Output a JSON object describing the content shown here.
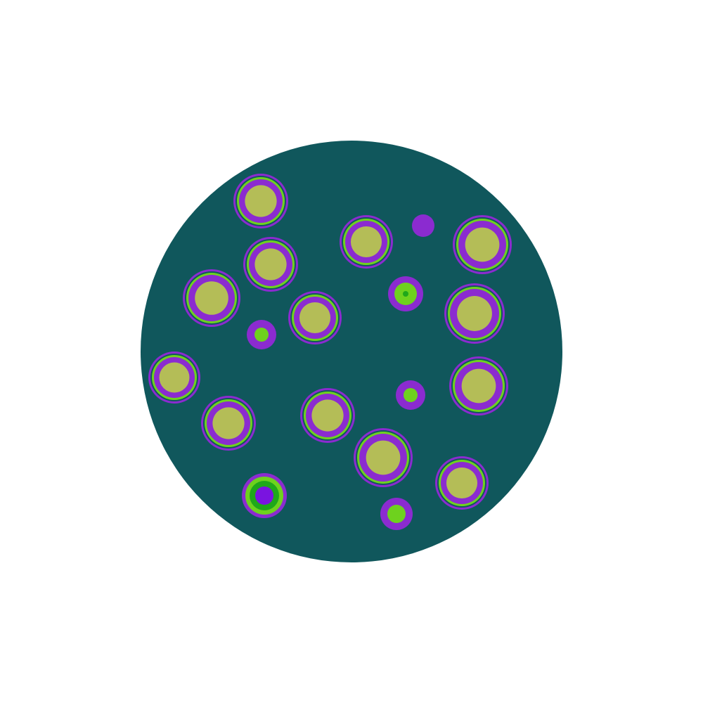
{
  "image": {
    "subject": "petri-dish",
    "colors": {
      "background": "#ffffff",
      "dish": "#10575c",
      "halo": "#8b2bd0",
      "ring_green": "#6ed21e",
      "ring_dark_green": "#1fa81a",
      "colony_core": "#b4bd57",
      "purple_core": "#7a14e0"
    }
  }
}
